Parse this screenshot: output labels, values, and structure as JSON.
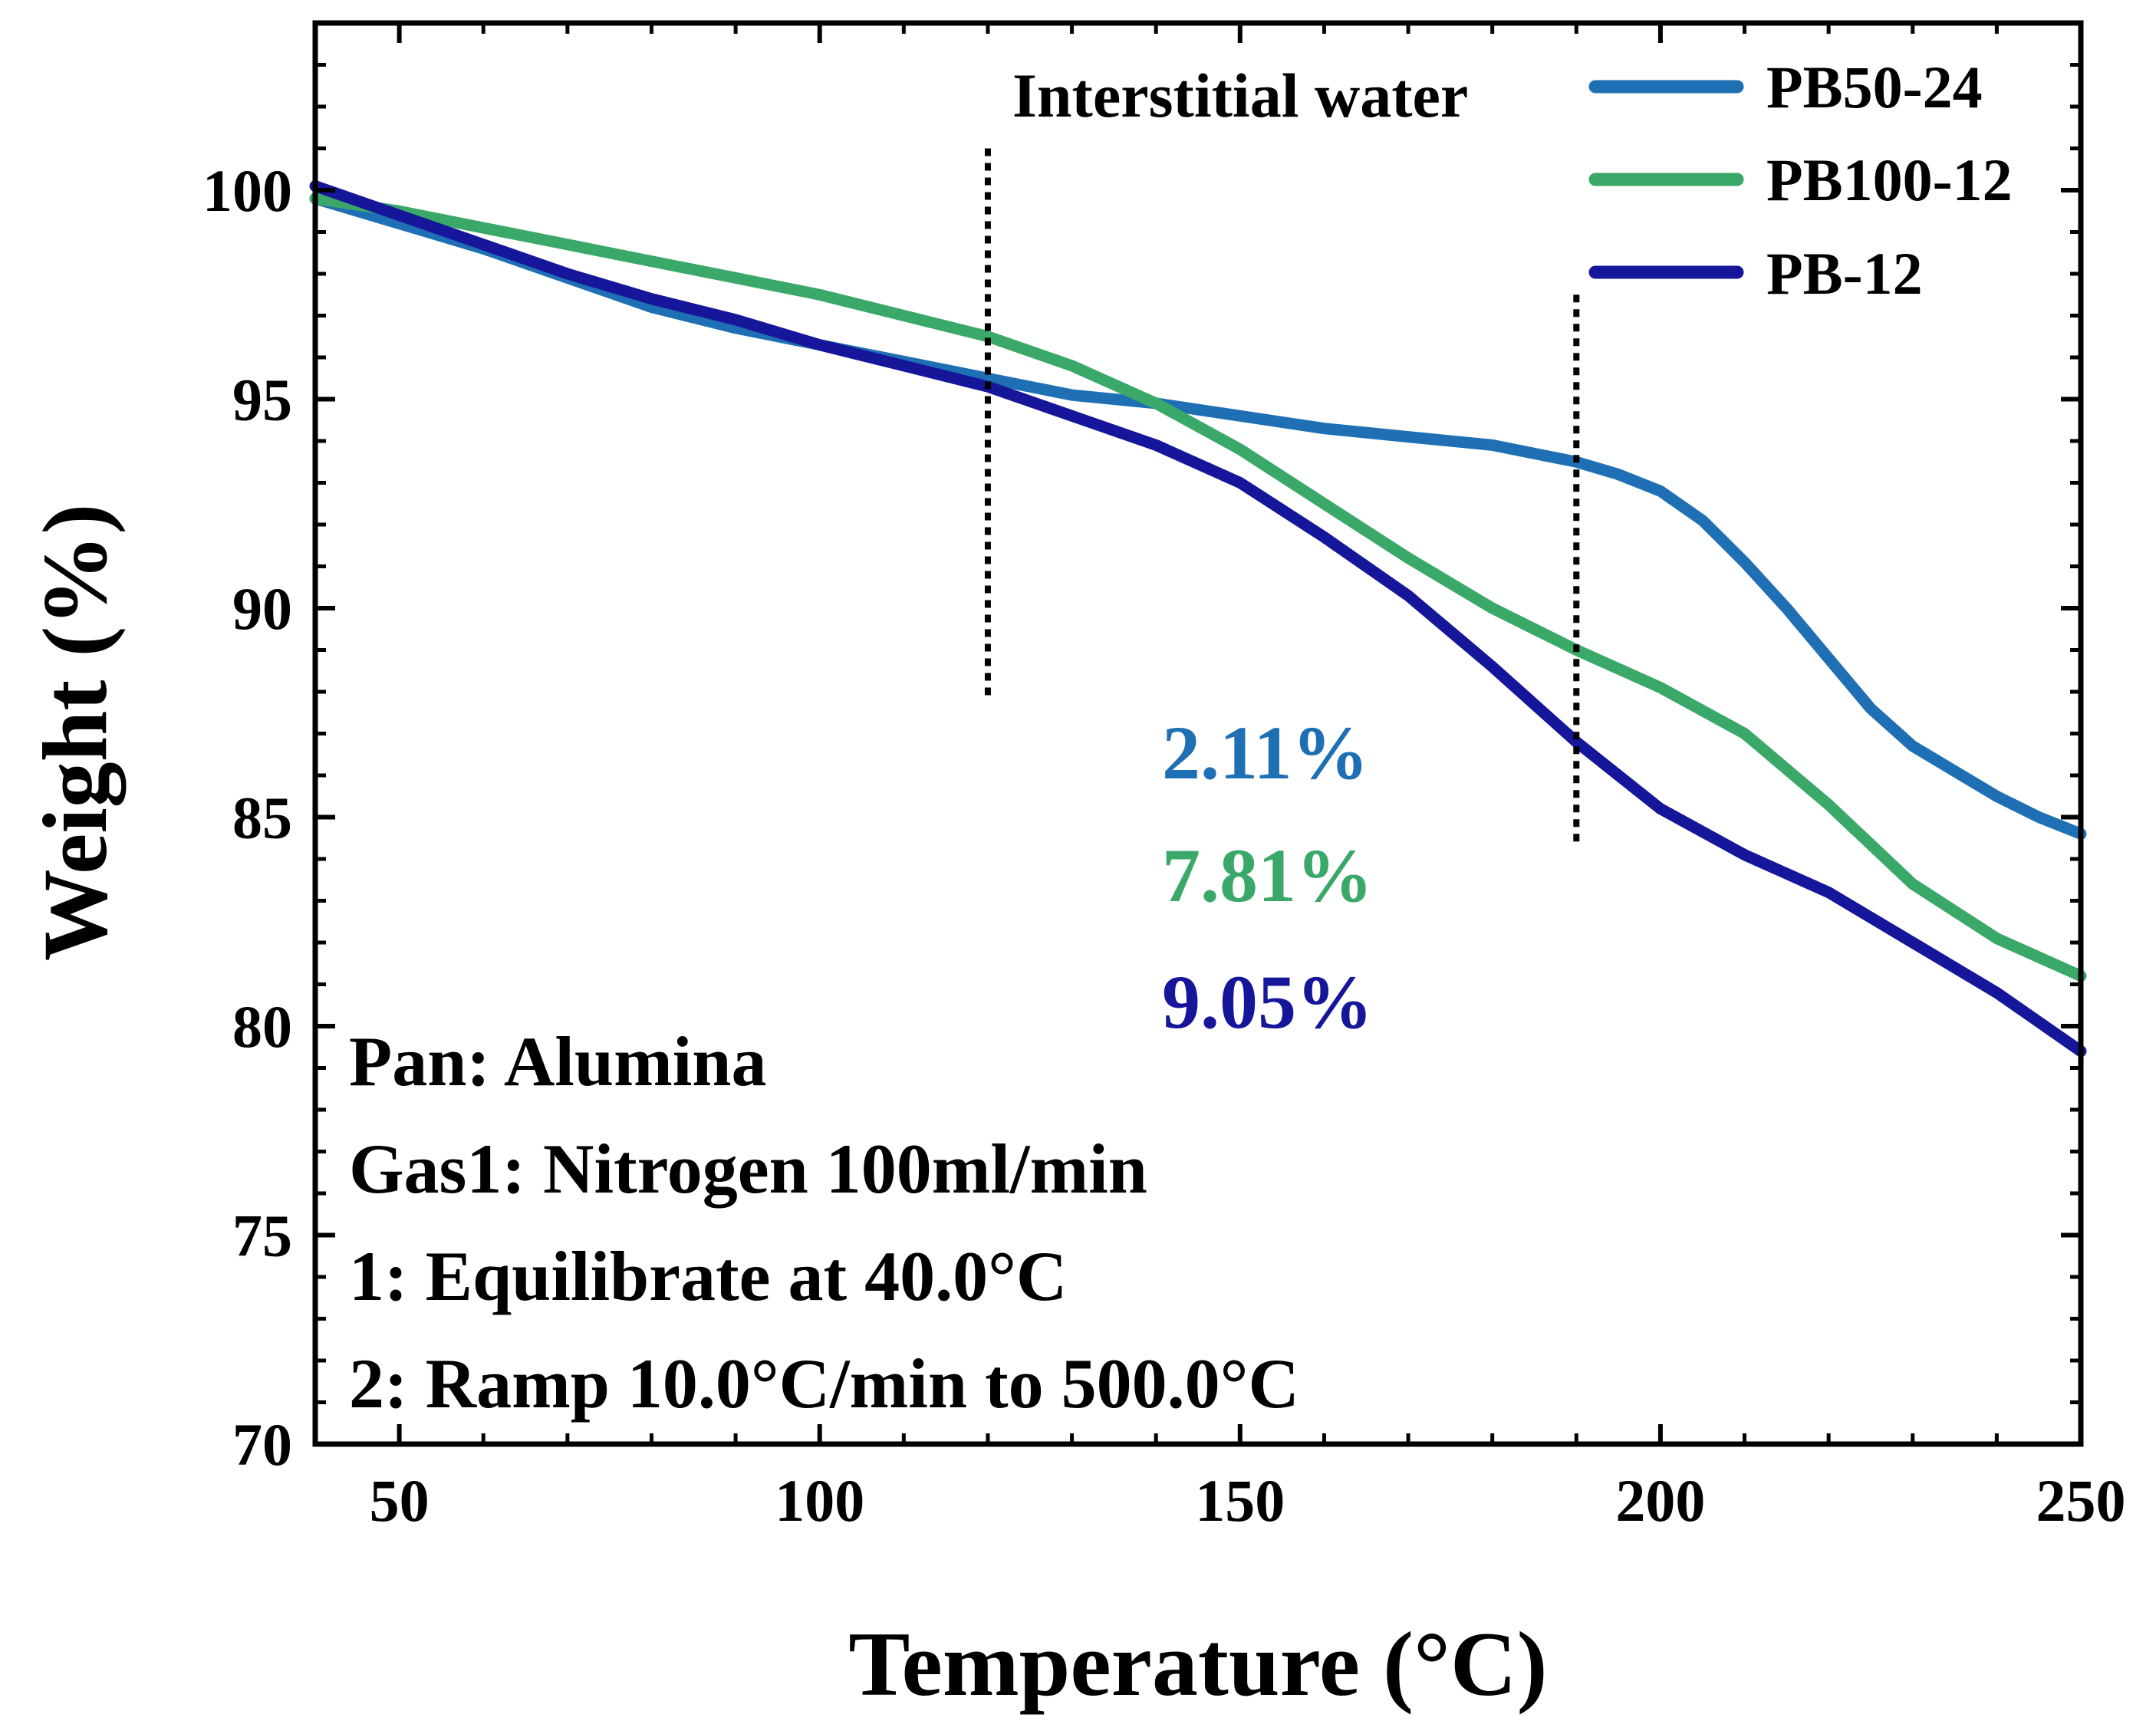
{
  "chart_data": {
    "type": "line",
    "title": "",
    "xlabel": "Temperature (°C)",
    "ylabel": "Weight (%)",
    "xlim": [
      40,
      250
    ],
    "ylim": [
      70,
      104
    ],
    "xticks": [
      50,
      100,
      150,
      200,
      250
    ],
    "yticks": [
      70,
      75,
      80,
      85,
      90,
      95,
      100
    ],
    "legend_position": "top-right",
    "series": [
      {
        "name": "PB50-24",
        "color": "#1f6fb4",
        "x": [
          40,
          50,
          60,
          70,
          80,
          90,
          100,
          110,
          120,
          130,
          140,
          150,
          160,
          170,
          180,
          190,
          195,
          200,
          205,
          210,
          215,
          220,
          225,
          230,
          235,
          240,
          245,
          250
        ],
        "y": [
          99.8,
          99.2,
          98.6,
          97.9,
          97.2,
          96.7,
          96.3,
          95.9,
          95.5,
          95.1,
          94.9,
          94.6,
          94.3,
          94.1,
          93.9,
          93.5,
          93.2,
          92.8,
          92.1,
          91.1,
          90.0,
          88.8,
          87.6,
          86.7,
          86.1,
          85.5,
          85.0,
          84.6
        ]
      },
      {
        "name": "PB100-12",
        "color": "#3aa869",
        "x": [
          40,
          50,
          60,
          70,
          80,
          90,
          100,
          110,
          120,
          130,
          140,
          150,
          160,
          170,
          180,
          190,
          200,
          210,
          220,
          230,
          240,
          250
        ],
        "y": [
          99.8,
          99.5,
          99.1,
          98.7,
          98.3,
          97.9,
          97.5,
          97.0,
          96.5,
          95.8,
          94.9,
          93.8,
          92.5,
          91.2,
          90.0,
          89.0,
          88.1,
          87.0,
          85.3,
          83.4,
          82.1,
          81.2
        ]
      },
      {
        "name": "PB-12",
        "color": "#16169a",
        "x": [
          40,
          50,
          60,
          70,
          80,
          90,
          100,
          110,
          120,
          130,
          140,
          150,
          160,
          170,
          180,
          190,
          200,
          210,
          220,
          230,
          240,
          250
        ],
        "y": [
          100.1,
          99.4,
          98.7,
          98.0,
          97.4,
          96.9,
          96.3,
          95.8,
          95.3,
          94.6,
          93.9,
          93.0,
          91.7,
          90.3,
          88.6,
          86.8,
          85.2,
          84.1,
          83.2,
          82.0,
          80.8,
          79.4
        ]
      }
    ],
    "vlines": [
      {
        "x": 120,
        "y_range": [
          87.8,
          101.0
        ]
      },
      {
        "x": 190,
        "y_range": [
          84.4,
          97.5
        ]
      }
    ],
    "annotations": {
      "region_label": "Interstitial water",
      "percentages": [
        {
          "text": "2.11%",
          "color": "#1f6fb4"
        },
        {
          "text": "7.81%",
          "color": "#3aa869"
        },
        {
          "text": "9.05%",
          "color": "#16169a"
        }
      ],
      "conditions": [
        "Pan: Alumina",
        "Gas1: Nitrogen 100ml/min",
        "1: Equilibrate at 40.0°C",
        "2: Ramp 10.0°C/min to 500.0°C"
      ]
    }
  }
}
